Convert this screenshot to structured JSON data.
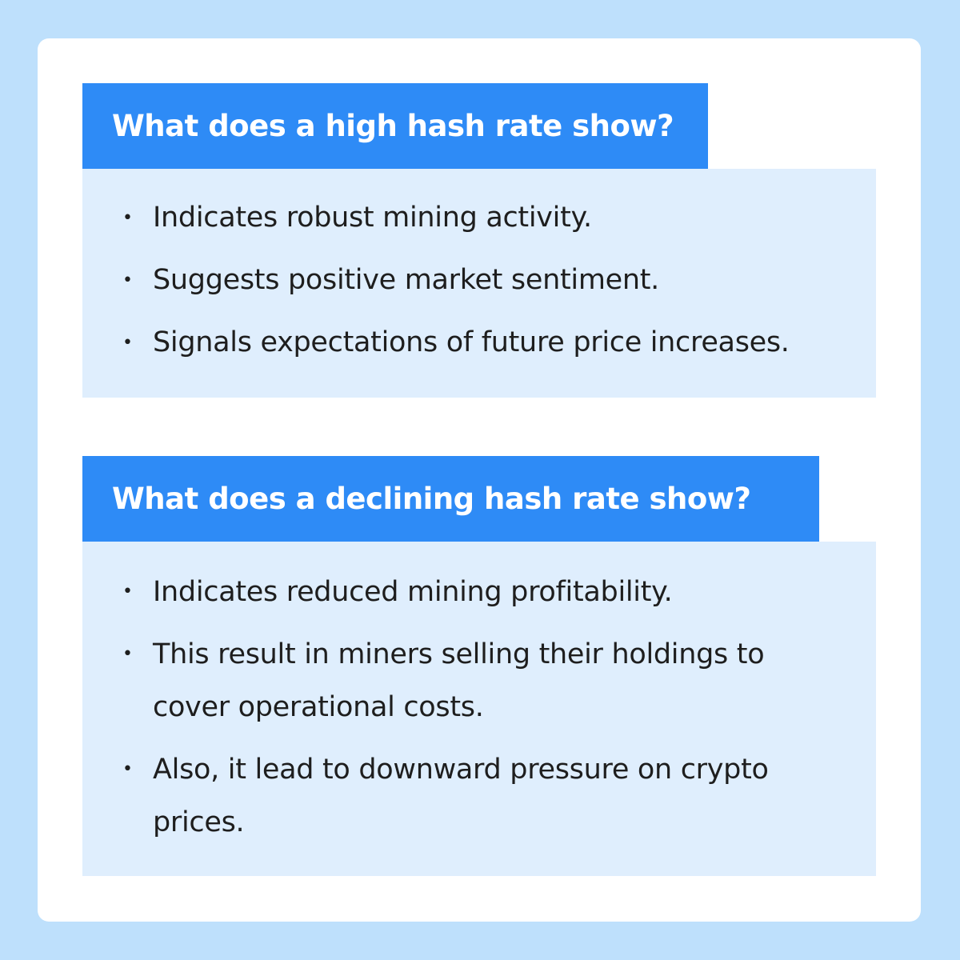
{
  "sections": [
    {
      "heading": "What does a high hash rate show?",
      "items": [
        "Indicates robust mining activity.",
        "Suggests positive market sentiment.",
        "Signals expectations of future price increases."
      ]
    },
    {
      "heading": "What does a declining hash rate show?",
      "items": [
        "Indicates reduced mining profitability.",
        "This result in miners selling their holdings to cover operational costs.",
        "Also, it lead to downward pressure on crypto prices."
      ]
    }
  ],
  "colors": {
    "page_background": "#bee0fc",
    "card_background": "#ffffff",
    "heading_background": "#2e8bf6",
    "body_background": "#dfeefd",
    "text": "#1e1e1e"
  }
}
